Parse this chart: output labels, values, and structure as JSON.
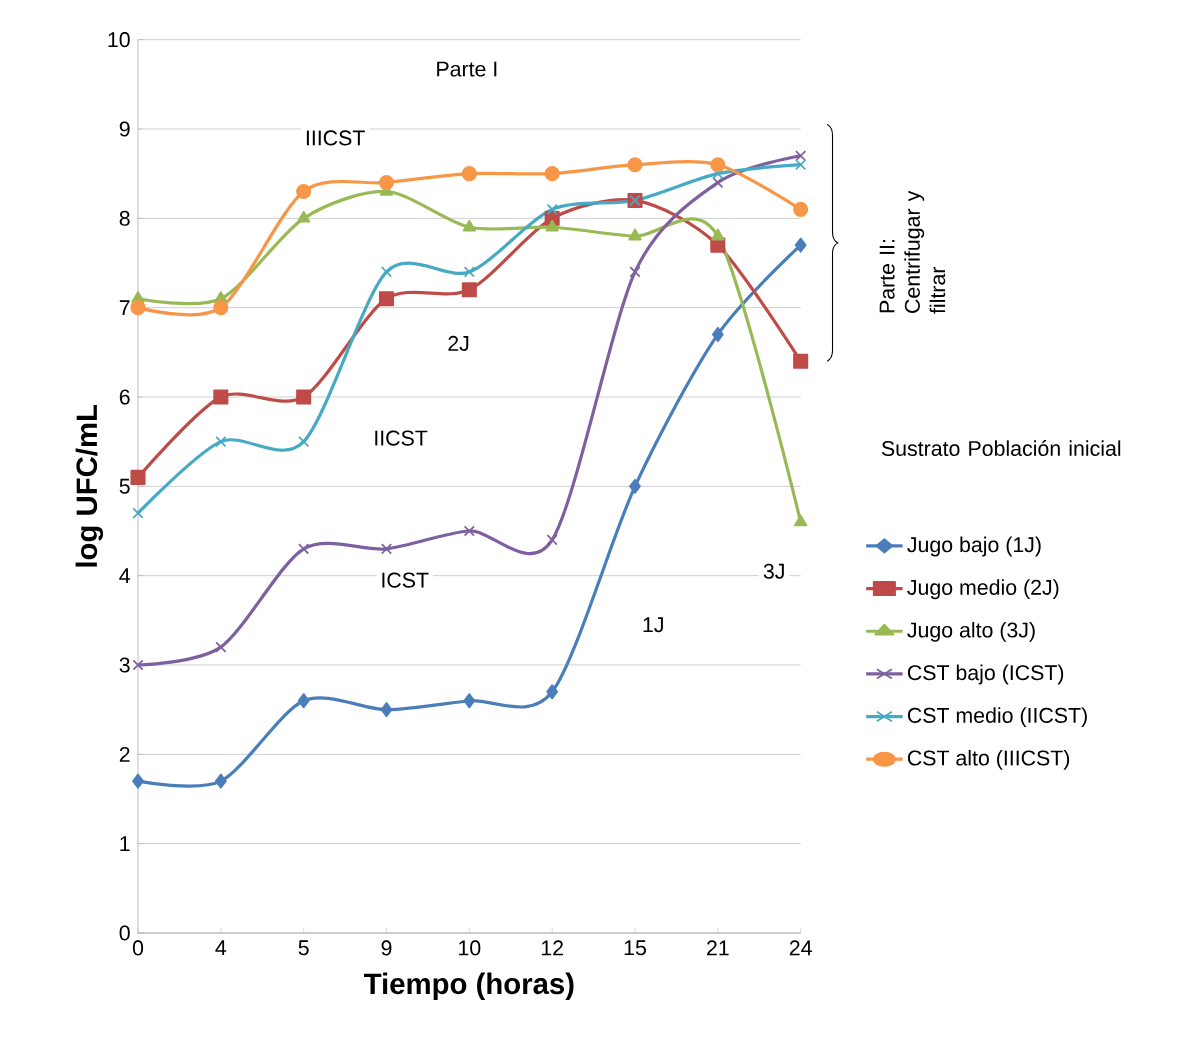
{
  "chart_data": {
    "type": "line",
    "xlabel": "Tiempo (horas)",
    "ylabel": "log UFC/mL",
    "legend_title": "Sustrato    Población inicial",
    "categories": [
      "0",
      "4",
      "5",
      "9",
      "10",
      "12",
      "15",
      "21",
      "24"
    ],
    "ylim": [
      0,
      10
    ],
    "yticks": [
      0,
      1,
      2,
      3,
      4,
      5,
      6,
      7,
      8,
      9,
      10
    ],
    "grid": "y",
    "legend": "right",
    "series": [
      {
        "name": "Jugo bajo (1J)",
        "color": "#4a7ebb",
        "marker": "diamond",
        "values": [
          1.7,
          1.7,
          2.6,
          2.5,
          2.6,
          2.7,
          5.0,
          6.7,
          7.7
        ]
      },
      {
        "name": "Jugo medio (2J)",
        "color": "#be4b48",
        "marker": "square",
        "values": [
          5.1,
          6.0,
          6.0,
          7.1,
          7.2,
          8.0,
          8.2,
          7.7,
          6.4
        ]
      },
      {
        "name": "Jugo alto (3J)",
        "color": "#98b954",
        "marker": "triangle",
        "values": [
          7.1,
          7.1,
          8.0,
          8.3,
          7.9,
          7.9,
          7.8,
          7.8,
          4.6
        ]
      },
      {
        "name": "CST bajo (ICST)",
        "color": "#7d60a0",
        "marker": "cross",
        "values": [
          3.0,
          3.2,
          4.3,
          4.3,
          4.5,
          4.4,
          7.4,
          8.4,
          8.7
        ]
      },
      {
        "name": "CST medio (IICST)",
        "color": "#46aac5",
        "marker": "cross",
        "values": [
          4.7,
          5.5,
          5.5,
          7.4,
          7.4,
          8.1,
          8.2,
          8.5,
          8.6
        ]
      },
      {
        "name": "CST alto (IIICST)",
        "color": "#f79646",
        "marker": "circle",
        "values": [
          7.0,
          7.0,
          8.3,
          8.4,
          8.5,
          8.5,
          8.6,
          8.6,
          8.1
        ]
      }
    ],
    "annotations": [
      "Parte I",
      "IIICST",
      "2J",
      "IICST",
      "ICST",
      "3J",
      "1J",
      "Parte II: Centrifugar y filtrar"
    ]
  }
}
